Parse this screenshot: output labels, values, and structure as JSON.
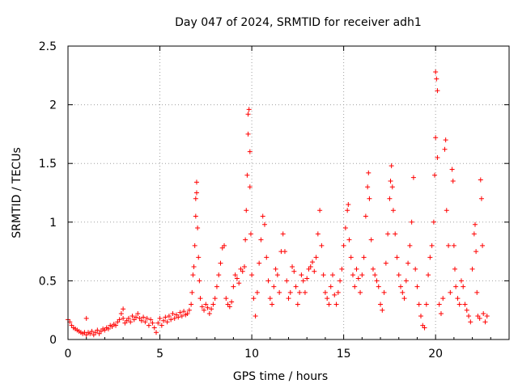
{
  "chart_data": {
    "type": "scatter",
    "title": "Day 047 of 2024, SRMTID for receiver adh1",
    "xlabel": "GPS time / hours",
    "ylabel": "SRMTID / TECUs",
    "xlim": [
      0,
      24
    ],
    "ylim": [
      0,
      2.5
    ],
    "xticks": [
      0,
      5,
      10,
      15,
      20
    ],
    "yticks": [
      0,
      0.5,
      1,
      1.5,
      2,
      2.5
    ],
    "xtick_labels": [
      "0",
      "5",
      "10",
      "15",
      "20"
    ],
    "ytick_labels": [
      "0",
      "0.5",
      "1",
      "1.5",
      "2",
      "2.5"
    ],
    "grid": true,
    "marker": "plus",
    "color": "#ff0000",
    "series": [
      {
        "name": "SRMTID",
        "points": [
          [
            0.0,
            0.17
          ],
          [
            0.1,
            0.15
          ],
          [
            0.2,
            0.12
          ],
          [
            0.3,
            0.1
          ],
          [
            0.4,
            0.09
          ],
          [
            0.5,
            0.08
          ],
          [
            0.6,
            0.07
          ],
          [
            0.7,
            0.06
          ],
          [
            0.8,
            0.05
          ],
          [
            0.9,
            0.06
          ],
          [
            1.0,
            0.04
          ],
          [
            1.0,
            0.18
          ],
          [
            1.1,
            0.06
          ],
          [
            1.2,
            0.05
          ],
          [
            1.3,
            0.07
          ],
          [
            1.4,
            0.04
          ],
          [
            1.5,
            0.06
          ],
          [
            1.6,
            0.08
          ],
          [
            1.7,
            0.05
          ],
          [
            1.8,
            0.07
          ],
          [
            1.9,
            0.09
          ],
          [
            2.0,
            0.08
          ],
          [
            2.1,
            0.1
          ],
          [
            2.2,
            0.09
          ],
          [
            2.3,
            0.12
          ],
          [
            2.4,
            0.11
          ],
          [
            2.5,
            0.13
          ],
          [
            2.6,
            0.12
          ],
          [
            2.7,
            0.15
          ],
          [
            2.8,
            0.17
          ],
          [
            2.9,
            0.22
          ],
          [
            3.0,
            0.26
          ],
          [
            3.0,
            0.18
          ],
          [
            3.1,
            0.14
          ],
          [
            3.2,
            0.16
          ],
          [
            3.3,
            0.18
          ],
          [
            3.4,
            0.15
          ],
          [
            3.5,
            0.2
          ],
          [
            3.6,
            0.17
          ],
          [
            3.7,
            0.19
          ],
          [
            3.8,
            0.22
          ],
          [
            3.9,
            0.18
          ],
          [
            4.0,
            0.16
          ],
          [
            4.1,
            0.19
          ],
          [
            4.2,
            0.15
          ],
          [
            4.3,
            0.18
          ],
          [
            4.4,
            0.12
          ],
          [
            4.5,
            0.17
          ],
          [
            4.6,
            0.14
          ],
          [
            4.7,
            0.1
          ],
          [
            4.8,
            0.06
          ],
          [
            4.9,
            0.14
          ],
          [
            5.0,
            0.18
          ],
          [
            5.1,
            0.12
          ],
          [
            5.2,
            0.16
          ],
          [
            5.3,
            0.19
          ],
          [
            5.4,
            0.15
          ],
          [
            5.5,
            0.2
          ],
          [
            5.6,
            0.17
          ],
          [
            5.7,
            0.22
          ],
          [
            5.8,
            0.18
          ],
          [
            5.9,
            0.21
          ],
          [
            6.0,
            0.19
          ],
          [
            6.1,
            0.23
          ],
          [
            6.2,
            0.2
          ],
          [
            6.3,
            0.24
          ],
          [
            6.4,
            0.21
          ],
          [
            6.5,
            0.22
          ],
          [
            6.6,
            0.25
          ],
          [
            6.7,
            0.3
          ],
          [
            6.75,
            0.4
          ],
          [
            6.8,
            0.55
          ],
          [
            6.85,
            0.62
          ],
          [
            6.9,
            0.8
          ],
          [
            6.95,
            1.05
          ],
          [
            6.95,
            1.2
          ],
          [
            7.0,
            1.34
          ],
          [
            7.0,
            1.25
          ],
          [
            7.05,
            0.95
          ],
          [
            7.1,
            0.7
          ],
          [
            7.15,
            0.5
          ],
          [
            7.2,
            0.35
          ],
          [
            7.3,
            0.28
          ],
          [
            7.4,
            0.25
          ],
          [
            7.5,
            0.3
          ],
          [
            7.6,
            0.27
          ],
          [
            7.7,
            0.22
          ],
          [
            7.8,
            0.26
          ],
          [
            7.9,
            0.3
          ],
          [
            8.0,
            0.35
          ],
          [
            8.1,
            0.45
          ],
          [
            8.2,
            0.55
          ],
          [
            8.3,
            0.65
          ],
          [
            8.4,
            0.78
          ],
          [
            8.5,
            0.8
          ],
          [
            8.6,
            0.35
          ],
          [
            8.7,
            0.3
          ],
          [
            8.8,
            0.28
          ],
          [
            8.9,
            0.32
          ],
          [
            9.0,
            0.45
          ],
          [
            9.1,
            0.55
          ],
          [
            9.2,
            0.52
          ],
          [
            9.3,
            0.48
          ],
          [
            9.4,
            0.6
          ],
          [
            9.5,
            0.58
          ],
          [
            9.6,
            0.62
          ],
          [
            9.65,
            0.85
          ],
          [
            9.7,
            1.1
          ],
          [
            9.75,
            1.4
          ],
          [
            9.8,
            1.75
          ],
          [
            9.8,
            1.92
          ],
          [
            9.85,
            1.96
          ],
          [
            9.9,
            1.6
          ],
          [
            9.9,
            1.3
          ],
          [
            9.95,
            0.9
          ],
          [
            10.0,
            0.55
          ],
          [
            10.1,
            0.35
          ],
          [
            10.2,
            0.2
          ],
          [
            10.3,
            0.4
          ],
          [
            10.4,
            0.65
          ],
          [
            10.5,
            0.85
          ],
          [
            10.6,
            1.05
          ],
          [
            10.7,
            0.98
          ],
          [
            10.8,
            0.7
          ],
          [
            10.9,
            0.5
          ],
          [
            11.0,
            0.35
          ],
          [
            11.1,
            0.3
          ],
          [
            11.2,
            0.45
          ],
          [
            11.3,
            0.6
          ],
          [
            11.4,
            0.55
          ],
          [
            11.5,
            0.4
          ],
          [
            11.6,
            0.75
          ],
          [
            11.7,
            0.9
          ],
          [
            11.8,
            0.75
          ],
          [
            11.9,
            0.5
          ],
          [
            12.0,
            0.35
          ],
          [
            12.1,
            0.4
          ],
          [
            12.2,
            0.62
          ],
          [
            12.3,
            0.58
          ],
          [
            12.4,
            0.45
          ],
          [
            12.5,
            0.3
          ],
          [
            12.6,
            0.4
          ],
          [
            12.7,
            0.55
          ],
          [
            12.8,
            0.5
          ],
          [
            12.9,
            0.4
          ],
          [
            13.0,
            0.52
          ],
          [
            13.1,
            0.6
          ],
          [
            13.2,
            0.62
          ],
          [
            13.3,
            0.66
          ],
          [
            13.4,
            0.58
          ],
          [
            13.5,
            0.7
          ],
          [
            13.6,
            0.9
          ],
          [
            13.7,
            1.1
          ],
          [
            13.8,
            0.8
          ],
          [
            13.9,
            0.55
          ],
          [
            14.0,
            0.4
          ],
          [
            14.1,
            0.35
          ],
          [
            14.2,
            0.3
          ],
          [
            14.3,
            0.45
          ],
          [
            14.4,
            0.55
          ],
          [
            14.5,
            0.38
          ],
          [
            14.6,
            0.3
          ],
          [
            14.7,
            0.4
          ],
          [
            14.8,
            0.5
          ],
          [
            14.9,
            0.6
          ],
          [
            15.0,
            0.8
          ],
          [
            15.1,
            0.95
          ],
          [
            15.2,
            1.1
          ],
          [
            15.25,
            1.15
          ],
          [
            15.3,
            0.85
          ],
          [
            15.4,
            0.7
          ],
          [
            15.5,
            0.55
          ],
          [
            15.6,
            0.45
          ],
          [
            15.7,
            0.6
          ],
          [
            15.8,
            0.52
          ],
          [
            15.9,
            0.4
          ],
          [
            16.0,
            0.55
          ],
          [
            16.1,
            0.7
          ],
          [
            16.2,
            1.05
          ],
          [
            16.3,
            1.3
          ],
          [
            16.35,
            1.42
          ],
          [
            16.4,
            1.2
          ],
          [
            16.5,
            0.85
          ],
          [
            16.6,
            0.6
          ],
          [
            16.7,
            0.55
          ],
          [
            16.8,
            0.5
          ],
          [
            16.9,
            0.45
          ],
          [
            17.0,
            0.3
          ],
          [
            17.1,
            0.25
          ],
          [
            17.2,
            0.4
          ],
          [
            17.3,
            0.65
          ],
          [
            17.4,
            0.9
          ],
          [
            17.5,
            1.2
          ],
          [
            17.55,
            1.35
          ],
          [
            17.6,
            1.48
          ],
          [
            17.65,
            1.3
          ],
          [
            17.7,
            1.1
          ],
          [
            17.8,
            0.9
          ],
          [
            17.9,
            0.7
          ],
          [
            18.0,
            0.55
          ],
          [
            18.1,
            0.45
          ],
          [
            18.2,
            0.4
          ],
          [
            18.3,
            0.35
          ],
          [
            18.4,
            0.5
          ],
          [
            18.5,
            0.65
          ],
          [
            18.6,
            0.8
          ],
          [
            18.7,
            1.0
          ],
          [
            18.8,
            1.38
          ],
          [
            18.9,
            0.6
          ],
          [
            19.0,
            0.45
          ],
          [
            19.1,
            0.3
          ],
          [
            19.2,
            0.2
          ],
          [
            19.3,
            0.12
          ],
          [
            19.4,
            0.1
          ],
          [
            19.5,
            0.3
          ],
          [
            19.6,
            0.55
          ],
          [
            19.7,
            0.7
          ],
          [
            19.8,
            0.8
          ],
          [
            19.9,
            1.0
          ],
          [
            19.95,
            1.4
          ],
          [
            20.0,
            1.72
          ],
          [
            20.0,
            2.28
          ],
          [
            20.05,
            2.22
          ],
          [
            20.1,
            2.12
          ],
          [
            20.1,
            1.55
          ],
          [
            20.2,
            0.3
          ],
          [
            20.3,
            0.22
          ],
          [
            20.4,
            0.35
          ],
          [
            20.5,
            1.62
          ],
          [
            20.55,
            1.7
          ],
          [
            20.6,
            1.1
          ],
          [
            20.7,
            0.8
          ],
          [
            20.8,
            0.4
          ],
          [
            20.9,
            1.45
          ],
          [
            20.95,
            1.35
          ],
          [
            21.0,
            0.8
          ],
          [
            21.05,
            0.6
          ],
          [
            21.1,
            0.45
          ],
          [
            21.2,
            0.35
          ],
          [
            21.3,
            0.3
          ],
          [
            21.4,
            0.5
          ],
          [
            21.5,
            0.45
          ],
          [
            21.6,
            0.3
          ],
          [
            21.7,
            0.25
          ],
          [
            21.8,
            0.2
          ],
          [
            21.9,
            0.15
          ],
          [
            22.0,
            0.6
          ],
          [
            22.1,
            0.9
          ],
          [
            22.15,
            0.98
          ],
          [
            22.2,
            0.75
          ],
          [
            22.25,
            0.4
          ],
          [
            22.3,
            0.2
          ],
          [
            22.4,
            0.18
          ],
          [
            22.45,
            1.36
          ],
          [
            22.5,
            1.2
          ],
          [
            22.55,
            0.8
          ],
          [
            22.6,
            0.22
          ],
          [
            22.7,
            0.15
          ],
          [
            22.8,
            0.2
          ]
        ]
      }
    ]
  }
}
